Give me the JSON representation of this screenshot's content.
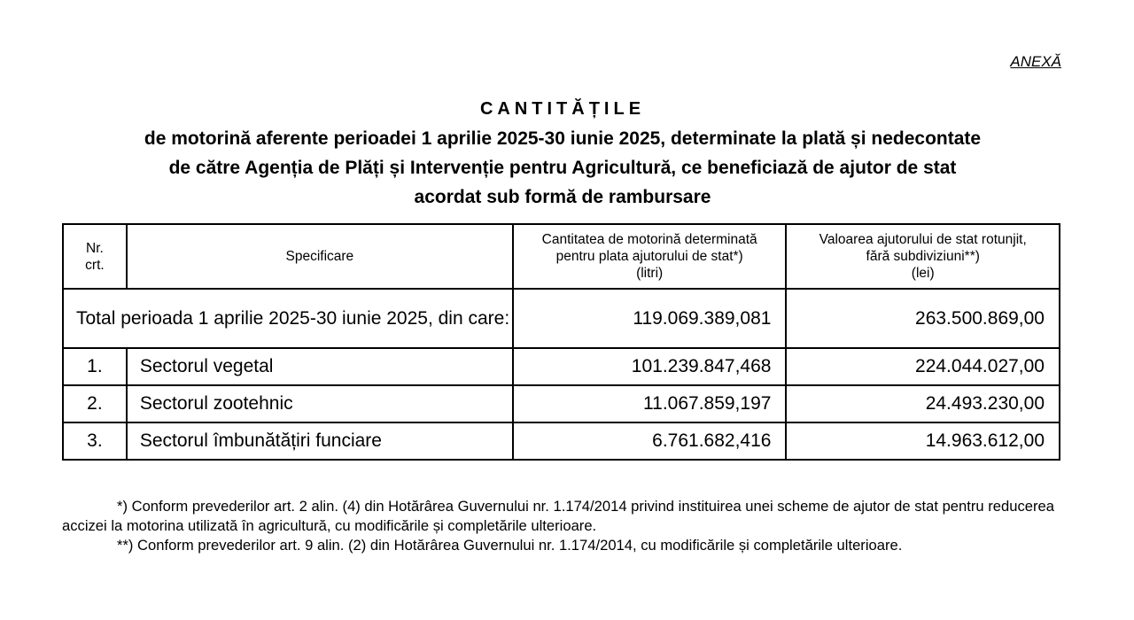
{
  "annex": "ANEXĂ",
  "title": "CANTITĂȚILE",
  "subtitle_lines": [
    "de motorină aferente perioadei 1 aprilie 2025-30 iunie 2025, determinate la plată și nedecontate",
    "de către Agenția de Plăți și Intervenție pentru Agricultură, ce beneficiază de ajutor de stat",
    "acordat sub formă de rambursare"
  ],
  "table": {
    "headers": [
      [
        "Nr.",
        "crt."
      ],
      [
        "Specificare"
      ],
      [
        "Cantitatea de motorină determinată",
        "pentru plata ajutorului de stat*)",
        "(litri)"
      ],
      [
        "Valoarea ajutorului de stat rotunjit,",
        "fără subdiviziuni**)",
        "(lei)"
      ]
    ],
    "total": {
      "label": "Total perioada 1 aprilie 2025-30 iunie 2025, din care:",
      "quantity": "119.069.389,081",
      "value": "263.500.869,00"
    },
    "rows": [
      {
        "nr": "1.",
        "spec": "Sectorul vegetal",
        "quantity": "101.239.847,468",
        "value": "224.044.027,00"
      },
      {
        "nr": "2.",
        "spec": "Sectorul zootehnic",
        "quantity": "11.067.859,197",
        "value": "24.493.230,00"
      },
      {
        "nr": "3.",
        "spec": "Sectorul îmbunătățiri funciare",
        "quantity": "6.761.682,416",
        "value": "14.963.612,00"
      }
    ]
  },
  "footnotes": [
    "*) Conform prevederilor art. 2 alin. (4) din Hotărârea Guvernului nr. 1.174/2014 privind instituirea unei scheme de ajutor de stat pentru reducerea accizei la motorina utilizată în agricultură, cu modificările și completările ulterioare.",
    "**) Conform prevederilor art. 9 alin. (2) din Hotărârea Guvernului nr. 1.174/2014, cu modificările și completările ulterioare."
  ]
}
